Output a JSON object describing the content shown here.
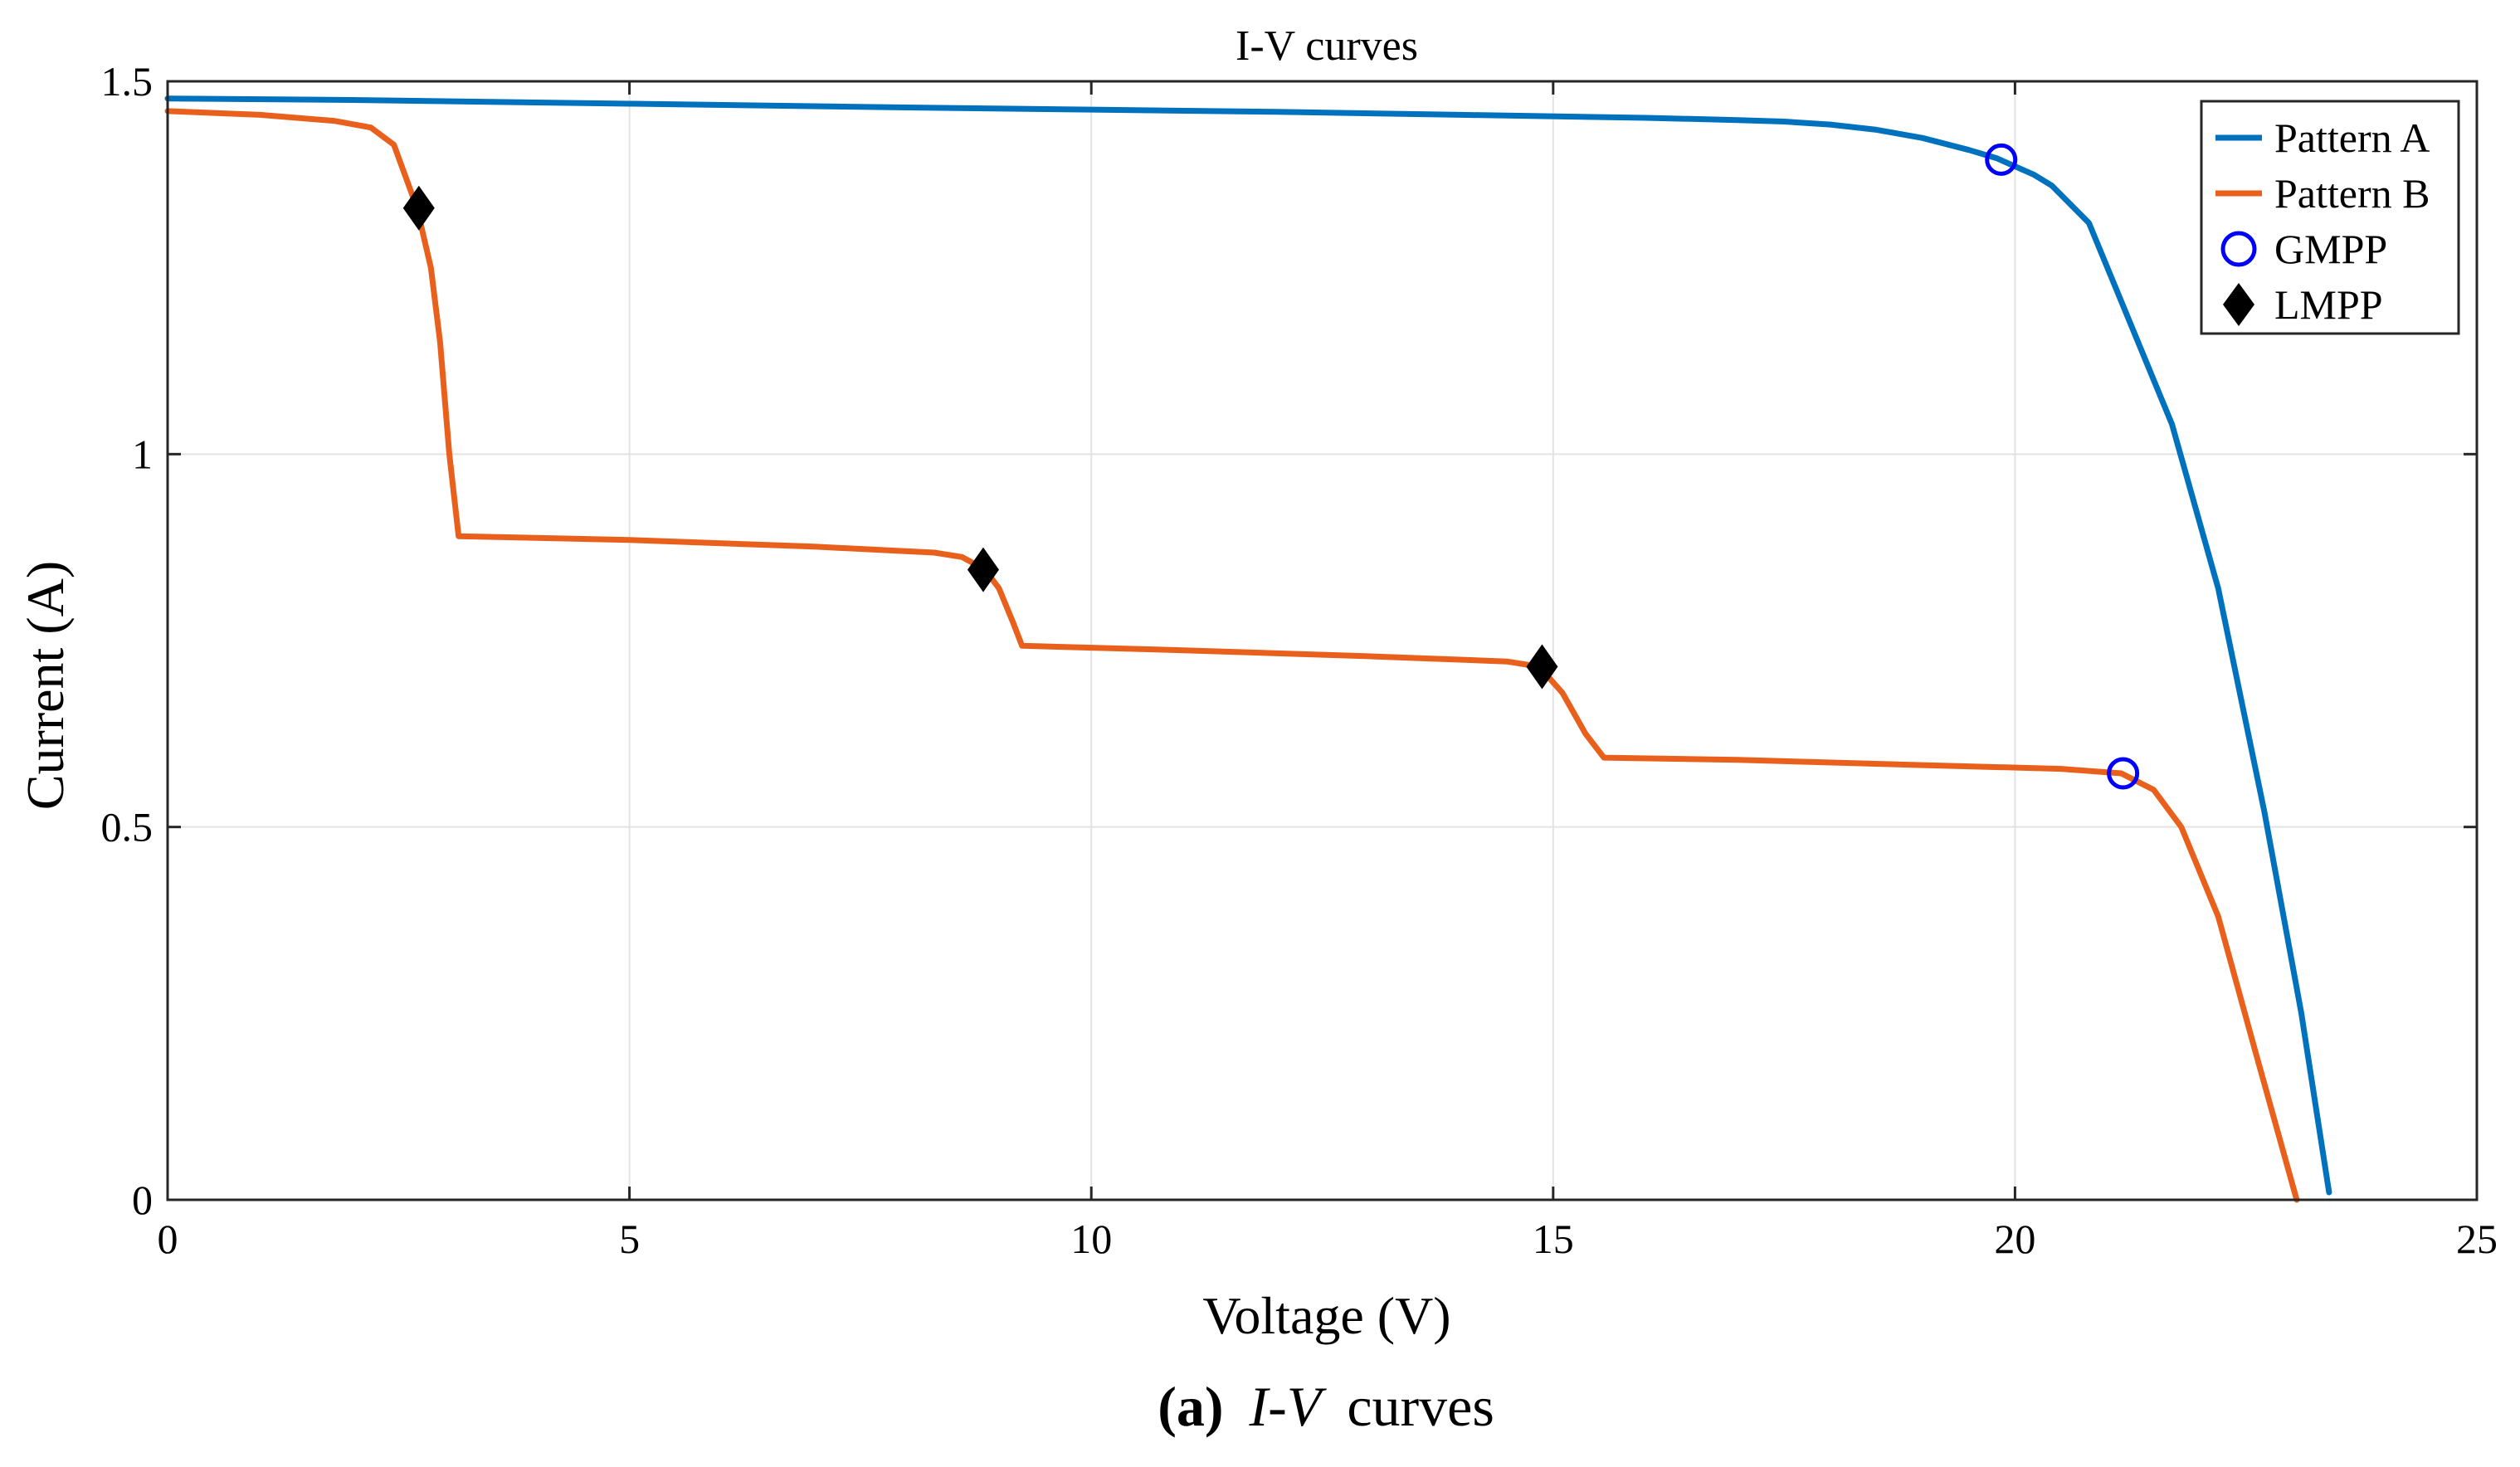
{
  "chart_data": {
    "type": "line",
    "title": "I-V curves",
    "xlabel": "Voltage (V)",
    "ylabel": "Current (A)",
    "xlim": [
      0,
      25
    ],
    "ylim": [
      0,
      1.5
    ],
    "grid": true,
    "legend_position": "top-right",
    "xticks": [
      "0",
      "5",
      "10",
      "15",
      "20",
      "25"
    ],
    "yticks": [
      "0",
      "0.5",
      "1",
      "1.5"
    ],
    "series": [
      {
        "name": "Pattern A",
        "color": "#0072BD",
        "x": [
          0,
          2,
          5,
          8,
          10,
          12,
          14,
          16,
          17,
          17.5,
          18,
          18.5,
          19,
          19.5,
          19.8,
          20.2,
          20.4,
          20.8,
          21.2,
          21.7,
          22.2,
          22.7,
          23.1,
          23.4
        ],
        "y": [
          1.477,
          1.475,
          1.47,
          1.465,
          1.462,
          1.459,
          1.455,
          1.451,
          1.448,
          1.446,
          1.442,
          1.435,
          1.424,
          1.408,
          1.397,
          1.375,
          1.36,
          1.31,
          1.19,
          1.04,
          0.82,
          0.52,
          0.25,
          0.01
        ]
      },
      {
        "name": "Pattern B",
        "color": "#E8601C",
        "x": [
          0,
          1,
          1.8,
          2.2,
          2.45,
          2.7,
          2.85,
          2.95,
          3.05,
          3.15,
          5,
          7,
          8.3,
          8.6,
          8.85,
          9.0,
          9.15,
          9.25,
          11,
          13,
          14.5,
          14.85,
          15.1,
          15.35,
          15.55,
          17,
          19,
          20.5,
          21.15,
          21.5,
          21.8,
          22.2,
          22.6,
          23.05
        ],
        "y": [
          1.46,
          1.455,
          1.447,
          1.438,
          1.415,
          1.33,
          1.25,
          1.15,
          1.0,
          0.89,
          0.885,
          0.876,
          0.868,
          0.862,
          0.845,
          0.82,
          0.775,
          0.743,
          0.737,
          0.729,
          0.722,
          0.715,
          0.68,
          0.625,
          0.593,
          0.59,
          0.583,
          0.578,
          0.572,
          0.55,
          0.5,
          0.38,
          0.2,
          0.0
        ]
      },
      {
        "name": "GMPP",
        "color": "#0000FF",
        "marker": "circle",
        "points": [
          [
            19.85,
            1.395
          ],
          [
            21.17,
            0.572
          ]
        ]
      },
      {
        "name": "LMPP",
        "color": "#000000",
        "marker": "diamond",
        "points": [
          [
            2.72,
            1.33
          ],
          [
            8.83,
            0.845
          ],
          [
            14.88,
            0.715
          ]
        ]
      }
    ],
    "caption_label": "(a)",
    "caption_italic": "I-V",
    "caption_rest": "curves"
  }
}
